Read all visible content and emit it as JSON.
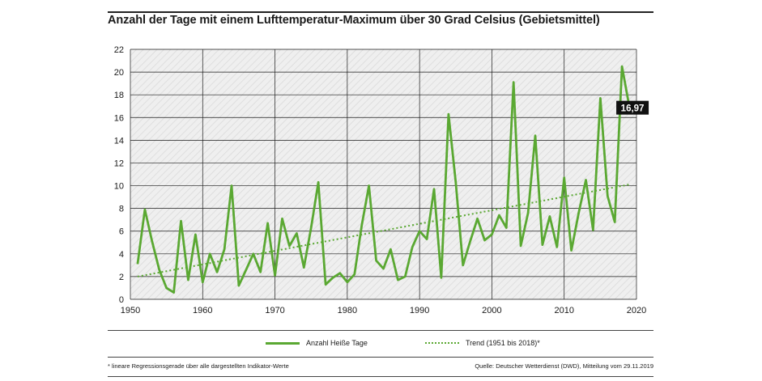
{
  "title": "Anzahl der Tage mit einem Lufttemperatur-Maximum über 30 Grad Celsius (Gebietsmittel)",
  "legend": {
    "series_label": "Anzahl Heiße Tage",
    "trend_label": "Trend (1951 bis 2018)*"
  },
  "footnote": "* lineare Regressionsgerade über alle dargestellten Indikator-Werte",
  "source": "Quelle: Deutscher Wetterdienst (DWD), Mitteilung vom 29.11.2019",
  "colors": {
    "series": "#5aa832",
    "grid": "#1a1a1a",
    "plot_bg": "#efefef",
    "hatch": "#d9d9d9"
  },
  "chart_data": {
    "type": "line",
    "xlim": [
      1950,
      2020
    ],
    "ylim": [
      0,
      22
    ],
    "x_ticks": [
      1950,
      1960,
      1970,
      1980,
      1990,
      2000,
      2010,
      2020
    ],
    "y_ticks": [
      0,
      2,
      4,
      6,
      8,
      10,
      12,
      14,
      16,
      18,
      20,
      22
    ],
    "grid": true,
    "last_value_label": "16,97",
    "series": [
      {
        "name": "Anzahl Heiße Tage",
        "x": [
          1951,
          1952,
          1953,
          1954,
          1955,
          1956,
          1957,
          1958,
          1959,
          1960,
          1961,
          1962,
          1963,
          1964,
          1965,
          1966,
          1967,
          1968,
          1969,
          1970,
          1971,
          1972,
          1973,
          1974,
          1975,
          1976,
          1977,
          1978,
          1979,
          1980,
          1981,
          1982,
          1983,
          1984,
          1985,
          1986,
          1987,
          1988,
          1989,
          1990,
          1991,
          1992,
          1993,
          1994,
          1995,
          1996,
          1997,
          1998,
          1999,
          2000,
          2001,
          2002,
          2003,
          2004,
          2005,
          2006,
          2007,
          2008,
          2009,
          2010,
          2011,
          2012,
          2013,
          2014,
          2015,
          2016,
          2017,
          2018,
          2019
        ],
        "values": [
          3.1,
          7.9,
          5.1,
          2.6,
          1.0,
          0.6,
          6.9,
          1.7,
          5.7,
          1.5,
          4.0,
          2.4,
          4.4,
          10.0,
          1.2,
          2.6,
          4.0,
          2.4,
          6.7,
          2.1,
          7.1,
          4.7,
          5.8,
          2.8,
          6.3,
          10.3,
          1.3,
          1.9,
          2.3,
          1.5,
          2.2,
          6.5,
          10.0,
          3.4,
          2.7,
          4.4,
          1.7,
          2.0,
          4.6,
          6.0,
          5.3,
          9.7,
          1.9,
          16.3,
          10.3,
          3.0,
          5.1,
          7.1,
          5.2,
          5.7,
          7.4,
          6.3,
          19.1,
          4.7,
          7.6,
          14.4,
          4.8,
          7.3,
          4.6,
          10.7,
          4.3,
          7.6,
          10.5,
          6.1,
          17.7,
          9.1,
          6.8,
          20.5,
          16.97
        ]
      },
      {
        "name": "Trend (1951 bis 2018)*",
        "x": [
          1951,
          2019
        ],
        "values": [
          2.0,
          10.1
        ]
      }
    ]
  }
}
